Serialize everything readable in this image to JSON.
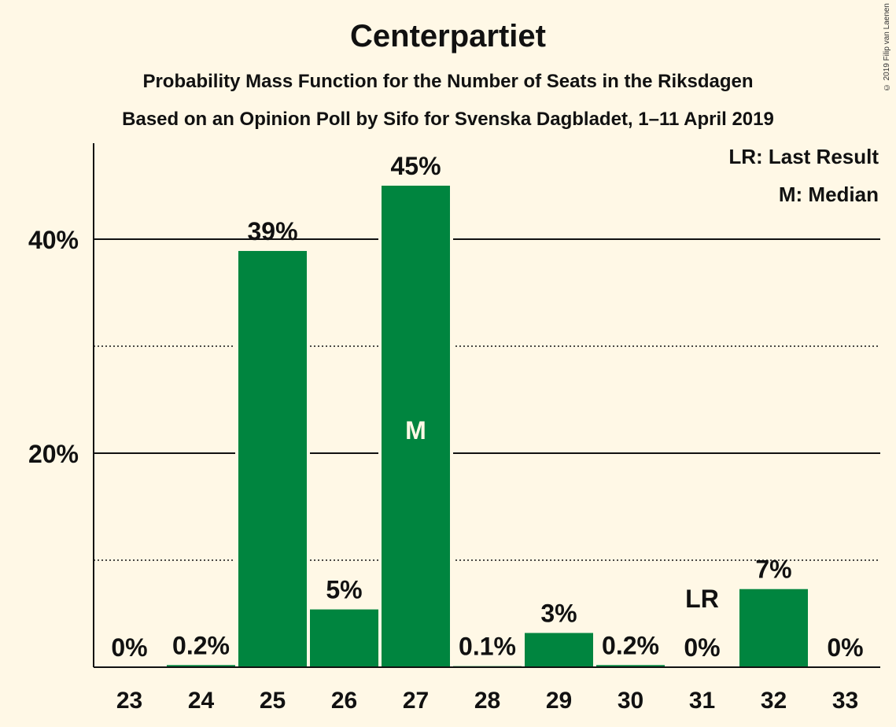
{
  "chart_data": {
    "type": "bar",
    "title": "Centerpartiet",
    "subtitle_1": "Probability Mass Function for the Number of Seats in the Riksdagen",
    "subtitle_2": "Based on an Opinion Poll by Sifo for Svenska Dagbladet, 1–11 April 2019",
    "copyright": "© 2019 Filip van Laenen",
    "legend": [
      "LR: Last Result",
      "M: Median"
    ],
    "categories": [
      "23",
      "24",
      "25",
      "26",
      "27",
      "28",
      "29",
      "30",
      "31",
      "32",
      "33"
    ],
    "values": [
      0,
      0.2,
      38.9,
      5.4,
      45.0,
      0.1,
      3.2,
      0.2,
      0,
      7.3,
      0
    ],
    "labels": [
      "0%",
      "0.2%",
      "39%",
      "5%",
      "45%",
      "0.1%",
      "3%",
      "0.2%",
      "0%",
      "7%",
      "0%"
    ],
    "median_index": 4,
    "median_marker": "M",
    "last_result_index": 8,
    "last_result_marker": "LR",
    "ylim": [
      0,
      49
    ],
    "yticks_major": [
      20,
      40
    ],
    "ytick_labels": [
      "20%",
      "40%"
    ],
    "yticks_minor": [
      10,
      30
    ],
    "bar_color": "#00853f",
    "background": "#fff8e6"
  }
}
